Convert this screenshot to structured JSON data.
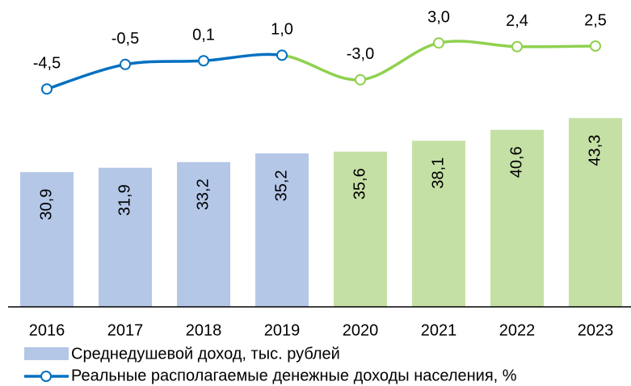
{
  "chart_data": {
    "type": "bar-line",
    "categories": [
      "2016",
      "2017",
      "2018",
      "2019",
      "2020",
      "2021",
      "2022",
      "2023"
    ],
    "ylim": [
      0,
      70
    ],
    "y2lim": [
      -10,
      10
    ],
    "series": [
      {
        "name": "Среднедушевой доход, тыс. рублей",
        "type": "bar",
        "color": "#b4c7e7",
        "colors": [
          "#b4c7e7",
          "#b4c7e7",
          "#b4c7e7",
          "#b4c7e7",
          "#c5e0a5",
          "#c5e0a5",
          "#c5e0a5",
          "#c5e0a5"
        ],
        "values": [
          30.9,
          31.9,
          33.2,
          35.2,
          35.6,
          38.1,
          40.6,
          43.3
        ],
        "value_labels": [
          "30,9",
          "31,9",
          "33,2",
          "35,2",
          "35,6",
          "38,1",
          "40,6",
          "43,3"
        ]
      },
      {
        "name": "Реальные располагаемые денежные доходы населения, %",
        "type": "line",
        "axis": "y2",
        "color": "#0070c0",
        "colors": [
          "#0070c0",
          "#0070c0",
          "#0070c0",
          "#0070c0",
          "#8fd14f",
          "#8fd14f",
          "#8fd14f",
          "#8fd14f"
        ],
        "label_colors": [
          "#1f3c88",
          "#1f3c88",
          "#1f3c88",
          "#1f3c88",
          "#4e9a2e",
          "#4e9a2e",
          "#4e9a2e",
          "#4e9a2e"
        ],
        "values": [
          -4.5,
          -0.5,
          0.1,
          1.0,
          -3.0,
          3.0,
          2.4,
          2.5
        ],
        "value_labels": [
          "-4,5",
          "-0,5",
          "0,1",
          "1,0",
          "-3,0",
          "3,0",
          "2,4",
          "2,5"
        ]
      }
    ]
  }
}
